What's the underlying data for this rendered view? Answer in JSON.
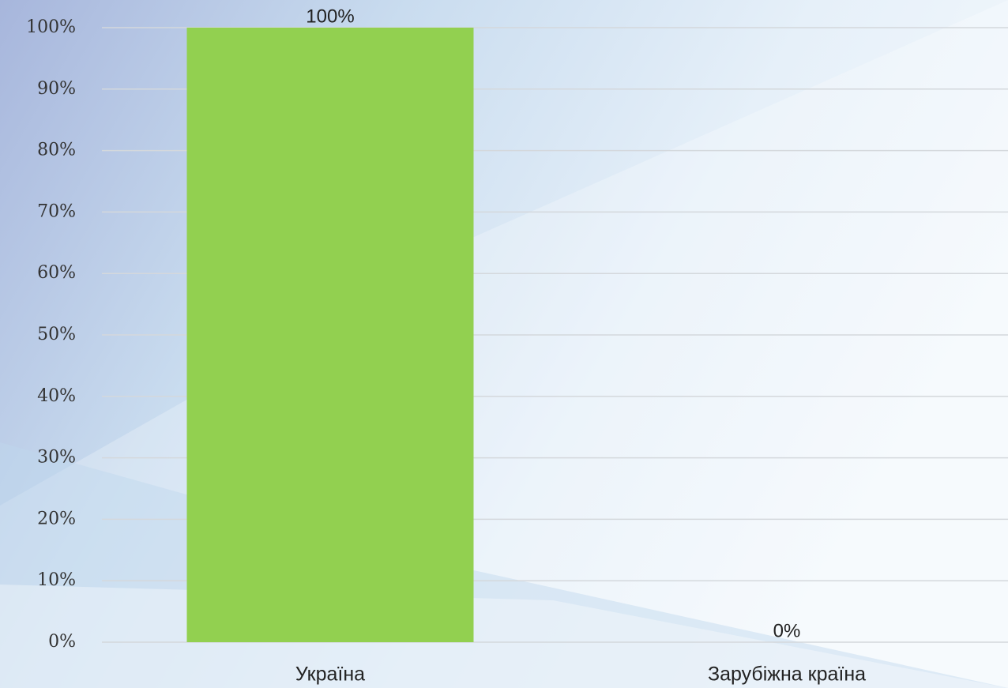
{
  "chart_data": {
    "type": "bar",
    "categories": [
      "Україна",
      "Зарубіжна країна"
    ],
    "values": [
      100,
      0
    ],
    "value_labels": [
      "100%",
      "0%"
    ],
    "color": "#92d050",
    "ylim": [
      0,
      100
    ],
    "yticks": [
      {
        "value": 0,
        "label": "0%"
      },
      {
        "value": 10,
        "label": "10%"
      },
      {
        "value": 20,
        "label": "20%"
      },
      {
        "value": 30,
        "label": "30%"
      },
      {
        "value": 40,
        "label": "40%"
      },
      {
        "value": 50,
        "label": "50%"
      },
      {
        "value": 60,
        "label": "60%"
      },
      {
        "value": 70,
        "label": "70%"
      },
      {
        "value": 80,
        "label": "80%"
      },
      {
        "value": 90,
        "label": "90%"
      },
      {
        "value": 100,
        "label": "100%"
      }
    ],
    "grid": true
  }
}
